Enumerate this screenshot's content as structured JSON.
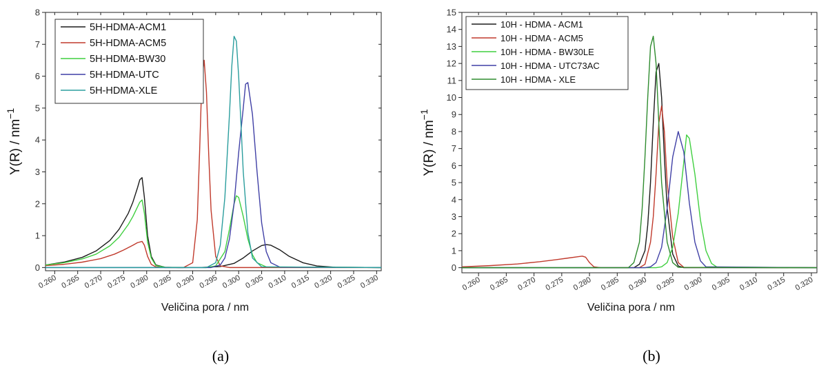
{
  "chart_data": [
    {
      "type": "line",
      "caption": "(a)",
      "xlabel": "Veličina pora / nm",
      "ylabel_main": "Y(R) / nm",
      "ylabel_exp": "−1",
      "xlim": [
        0.258,
        0.331
      ],
      "ylim": [
        -0.1,
        8
      ],
      "xticks": [
        0.26,
        0.265,
        0.27,
        0.275,
        0.28,
        0.285,
        0.29,
        0.295,
        0.3,
        0.305,
        0.31,
        0.315,
        0.32,
        0.325,
        0.33
      ],
      "xtick_labels": [
        "0.260",
        "0.265",
        "0.270",
        "0.275",
        "0.280",
        "0.285",
        "0.290",
        "0.295",
        "0.300",
        "0.305",
        "0.310",
        "0.315",
        "0.320",
        "0.325",
        "0.330"
      ],
      "yticks": [
        0,
        1,
        2,
        3,
        4,
        5,
        6,
        7,
        8
      ],
      "ytick_labels": [
        "0",
        "1",
        "2",
        "3",
        "4",
        "5",
        "6",
        "7",
        "8"
      ],
      "legend_position": "top-left",
      "series": [
        {
          "name": "5H-HDMA-ACM1",
          "color": "#1a1a1a",
          "x": [
            0.258,
            0.262,
            0.266,
            0.269,
            0.272,
            0.274,
            0.276,
            0.277,
            0.278,
            0.2785,
            0.279,
            0.2795,
            0.2802,
            0.281,
            0.282,
            0.284,
            0.287,
            0.292,
            0.296,
            0.299,
            0.301,
            0.303,
            0.305,
            0.306,
            0.307,
            0.309,
            0.311,
            0.314,
            0.317,
            0.321,
            0.331
          ],
          "y": [
            0.08,
            0.17,
            0.32,
            0.52,
            0.85,
            1.2,
            1.7,
            2.05,
            2.5,
            2.75,
            2.82,
            2.2,
            1.0,
            0.35,
            0.08,
            0.01,
            0,
            0.005,
            0.03,
            0.13,
            0.3,
            0.52,
            0.69,
            0.72,
            0.7,
            0.55,
            0.35,
            0.15,
            0.05,
            0.01,
            0
          ]
        },
        {
          "name": "5H-HDMA-ACM5",
          "color": "#c0392b",
          "x": [
            0.258,
            0.262,
            0.266,
            0.27,
            0.273,
            0.275,
            0.277,
            0.278,
            0.279,
            0.2795,
            0.2802,
            0.281,
            0.282,
            0.284,
            0.288,
            0.29,
            0.291,
            0.2915,
            0.292,
            0.2925,
            0.293,
            0.2935,
            0.294,
            0.295,
            0.296,
            0.298,
            0.331
          ],
          "y": [
            0.06,
            0.1,
            0.17,
            0.28,
            0.42,
            0.55,
            0.7,
            0.78,
            0.82,
            0.7,
            0.35,
            0.1,
            0.02,
            0,
            0,
            0.15,
            1.5,
            3.6,
            5.9,
            6.5,
            5.5,
            3.5,
            1.8,
            0.35,
            0.05,
            0,
            0
          ]
        },
        {
          "name": "5H-HDMA-BW30",
          "color": "#3fcf3f",
          "x": [
            0.258,
            0.262,
            0.266,
            0.269,
            0.272,
            0.274,
            0.276,
            0.277,
            0.278,
            0.2785,
            0.279,
            0.2795,
            0.2802,
            0.281,
            0.282,
            0.284,
            0.293,
            0.295,
            0.297,
            0.298,
            0.299,
            0.2995,
            0.3,
            0.301,
            0.302,
            0.303,
            0.304,
            0.306,
            0.331
          ],
          "y": [
            0.08,
            0.15,
            0.27,
            0.42,
            0.68,
            0.95,
            1.35,
            1.6,
            1.9,
            2.05,
            2.12,
            1.7,
            0.8,
            0.3,
            0.06,
            0.01,
            0,
            0.05,
            0.5,
            1.2,
            2.0,
            2.25,
            2.2,
            1.6,
            0.9,
            0.4,
            0.15,
            0.02,
            0
          ]
        },
        {
          "name": "5H-HDMA-UTC",
          "color": "#3f3fa5",
          "x": [
            0.258,
            0.294,
            0.296,
            0.297,
            0.298,
            0.299,
            0.3,
            0.301,
            0.3015,
            0.302,
            0.303,
            0.304,
            0.305,
            0.306,
            0.307,
            0.309,
            0.331
          ],
          "y": [
            0,
            0,
            0.08,
            0.3,
            0.9,
            2.0,
            3.6,
            5.0,
            5.75,
            5.8,
            4.8,
            3.0,
            1.4,
            0.5,
            0.15,
            0.01,
            0
          ]
        },
        {
          "name": "5H-HDMA-XLE",
          "color": "#2a9d9d",
          "x": [
            0.258,
            0.293,
            0.295,
            0.296,
            0.297,
            0.298,
            0.2985,
            0.299,
            0.2995,
            0.3,
            0.3005,
            0.301,
            0.302,
            0.303,
            0.305,
            0.331
          ],
          "y": [
            0,
            0,
            0.15,
            0.7,
            2.2,
            4.8,
            6.3,
            7.25,
            7.1,
            6.0,
            4.5,
            3.0,
            1.1,
            0.3,
            0.02,
            0
          ]
        }
      ]
    },
    {
      "type": "line",
      "caption": "(b)",
      "xlabel": "Veličina pora / nm",
      "ylabel_main": "Y(R) / nm",
      "ylabel_exp": "−1",
      "xlim": [
        0.257,
        0.321
      ],
      "ylim": [
        -0.3,
        15
      ],
      "xticks": [
        0.26,
        0.265,
        0.27,
        0.275,
        0.28,
        0.285,
        0.29,
        0.295,
        0.3,
        0.305,
        0.31,
        0.315,
        0.32
      ],
      "xtick_labels": [
        "0.260",
        "0.265",
        "0.270",
        "0.275",
        "0.280",
        "0.285",
        "0.290",
        "0.295",
        "0.300",
        "0.305",
        "0.310",
        "0.315",
        "0.320"
      ],
      "yticks": [
        0,
        1,
        2,
        3,
        4,
        5,
        6,
        7,
        8,
        9,
        10,
        11,
        12,
        13,
        14,
        15
      ],
      "ytick_labels": [
        "0",
        "1",
        "2",
        "3",
        "4",
        "5",
        "6",
        "7",
        "8",
        "9",
        "10",
        "11",
        "12",
        "13",
        "14",
        "15"
      ],
      "legend_position": "top-left",
      "series": [
        {
          "name": "10H - HDMA - ACM1",
          "color": "#1a1a1a",
          "x": [
            0.257,
            0.288,
            0.289,
            0.29,
            0.2905,
            0.291,
            0.2915,
            0.292,
            0.2925,
            0.293,
            0.2935,
            0.294,
            0.295,
            0.296,
            0.297,
            0.321
          ],
          "y": [
            0,
            0,
            0.2,
            1.0,
            2.5,
            5.0,
            8.5,
            11.5,
            12.0,
            10.0,
            6.5,
            3.5,
            0.8,
            0.1,
            0,
            0
          ]
        },
        {
          "name": "10H - HDMA - ACM5",
          "color": "#c0392b",
          "x": [
            0.257,
            0.262,
            0.267,
            0.271,
            0.274,
            0.276,
            0.278,
            0.2787,
            0.2793,
            0.28,
            0.2808,
            0.282,
            0.289,
            0.29,
            0.291,
            0.2915,
            0.292,
            0.2925,
            0.293,
            0.2935,
            0.294,
            0.295,
            0.296,
            0.297,
            0.321
          ],
          "y": [
            0.05,
            0.12,
            0.22,
            0.35,
            0.47,
            0.56,
            0.65,
            0.68,
            0.62,
            0.3,
            0.05,
            0,
            0,
            0.2,
            1.5,
            3.0,
            5.5,
            8.5,
            9.5,
            8.0,
            5.0,
            1.8,
            0.3,
            0.02,
            0
          ]
        },
        {
          "name": "10H - HDMA - BW30LE",
          "color": "#3fcf3f",
          "x": [
            0.257,
            0.292,
            0.293,
            0.294,
            0.295,
            0.296,
            0.297,
            0.2975,
            0.298,
            0.299,
            0.3,
            0.301,
            0.302,
            0.303,
            0.321
          ],
          "y": [
            0,
            0,
            0.05,
            0.3,
            1.2,
            3.2,
            6.2,
            7.8,
            7.6,
            5.5,
            2.8,
            1.0,
            0.25,
            0.03,
            0
          ]
        },
        {
          "name": "10H - HDMA - UTC73AC",
          "color": "#3f3fa5",
          "x": [
            0.257,
            0.29,
            0.291,
            0.292,
            0.293,
            0.294,
            0.295,
            0.296,
            0.297,
            0.298,
            0.299,
            0.3,
            0.301,
            0.321
          ],
          "y": [
            0,
            0,
            0.05,
            0.3,
            1.2,
            3.5,
            6.5,
            8.0,
            6.8,
            3.8,
            1.5,
            0.4,
            0.05,
            0
          ]
        },
        {
          "name": "10H - HDMA - XLE",
          "color": "#2e8b2e",
          "x": [
            0.257,
            0.287,
            0.288,
            0.289,
            0.2895,
            0.29,
            0.2905,
            0.291,
            0.2915,
            0.292,
            0.2925,
            0.293,
            0.294,
            0.295,
            0.296,
            0.321
          ],
          "y": [
            0,
            0,
            0.3,
            1.5,
            3.5,
            6.5,
            10.0,
            13.0,
            13.6,
            12.0,
            8.5,
            5.0,
            1.5,
            0.3,
            0.02,
            0
          ]
        }
      ]
    }
  ]
}
